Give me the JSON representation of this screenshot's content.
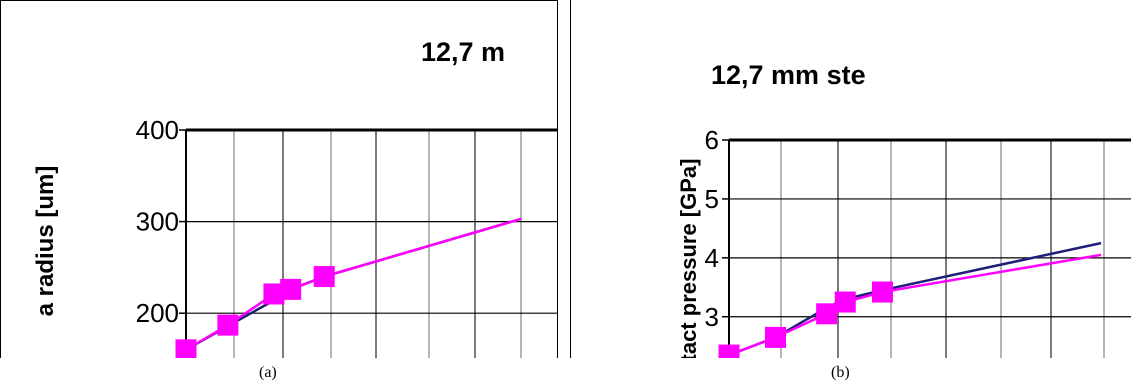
{
  "chart_data": [
    {
      "type": "line",
      "title": "12,7 m",
      "ylabel": "a radius  [um]",
      "xlim": [
        0,
        8
      ],
      "ylim": [
        150,
        400
      ],
      "yticks": [
        200,
        300,
        400
      ],
      "grid": true,
      "series": [
        {
          "color": "#1f1f7a",
          "marker": "none",
          "x": [
            0.0,
            1.0,
            2.1,
            2.5,
            3.3,
            8.0
          ],
          "y": [
            160,
            186,
            214,
            226,
            240,
            303
          ]
        },
        {
          "color": "#ff00ff",
          "marker": "square",
          "x": [
            0.0,
            1.0,
            2.1,
            2.5,
            3.3,
            8.0
          ],
          "y": [
            160,
            187,
            221,
            226,
            240,
            303
          ],
          "marker_count": 5
        }
      ]
    },
    {
      "type": "line",
      "title": "12,7 mm ste",
      "ylabel": "tact pressure [GPa]",
      "xlim": [
        0,
        8
      ],
      "ylim": [
        2.3,
        6
      ],
      "yticks": [
        3,
        4,
        5,
        6
      ],
      "grid": true,
      "series": [
        {
          "color": "#1f1f7a",
          "marker": "none",
          "x": [
            0.0,
            1.0,
            2.1,
            2.5,
            3.3,
            8.0
          ],
          "y": [
            2.35,
            2.65,
            3.15,
            3.3,
            3.45,
            4.25
          ]
        },
        {
          "color": "#ff00ff",
          "marker": "square",
          "x": [
            0.0,
            1.0,
            2.1,
            2.5,
            3.3,
            8.0
          ],
          "y": [
            2.35,
            2.65,
            3.05,
            3.25,
            3.42,
            4.05
          ],
          "marker_count": 5
        }
      ]
    }
  ],
  "captions": [
    "(a)",
    "(b)"
  ]
}
